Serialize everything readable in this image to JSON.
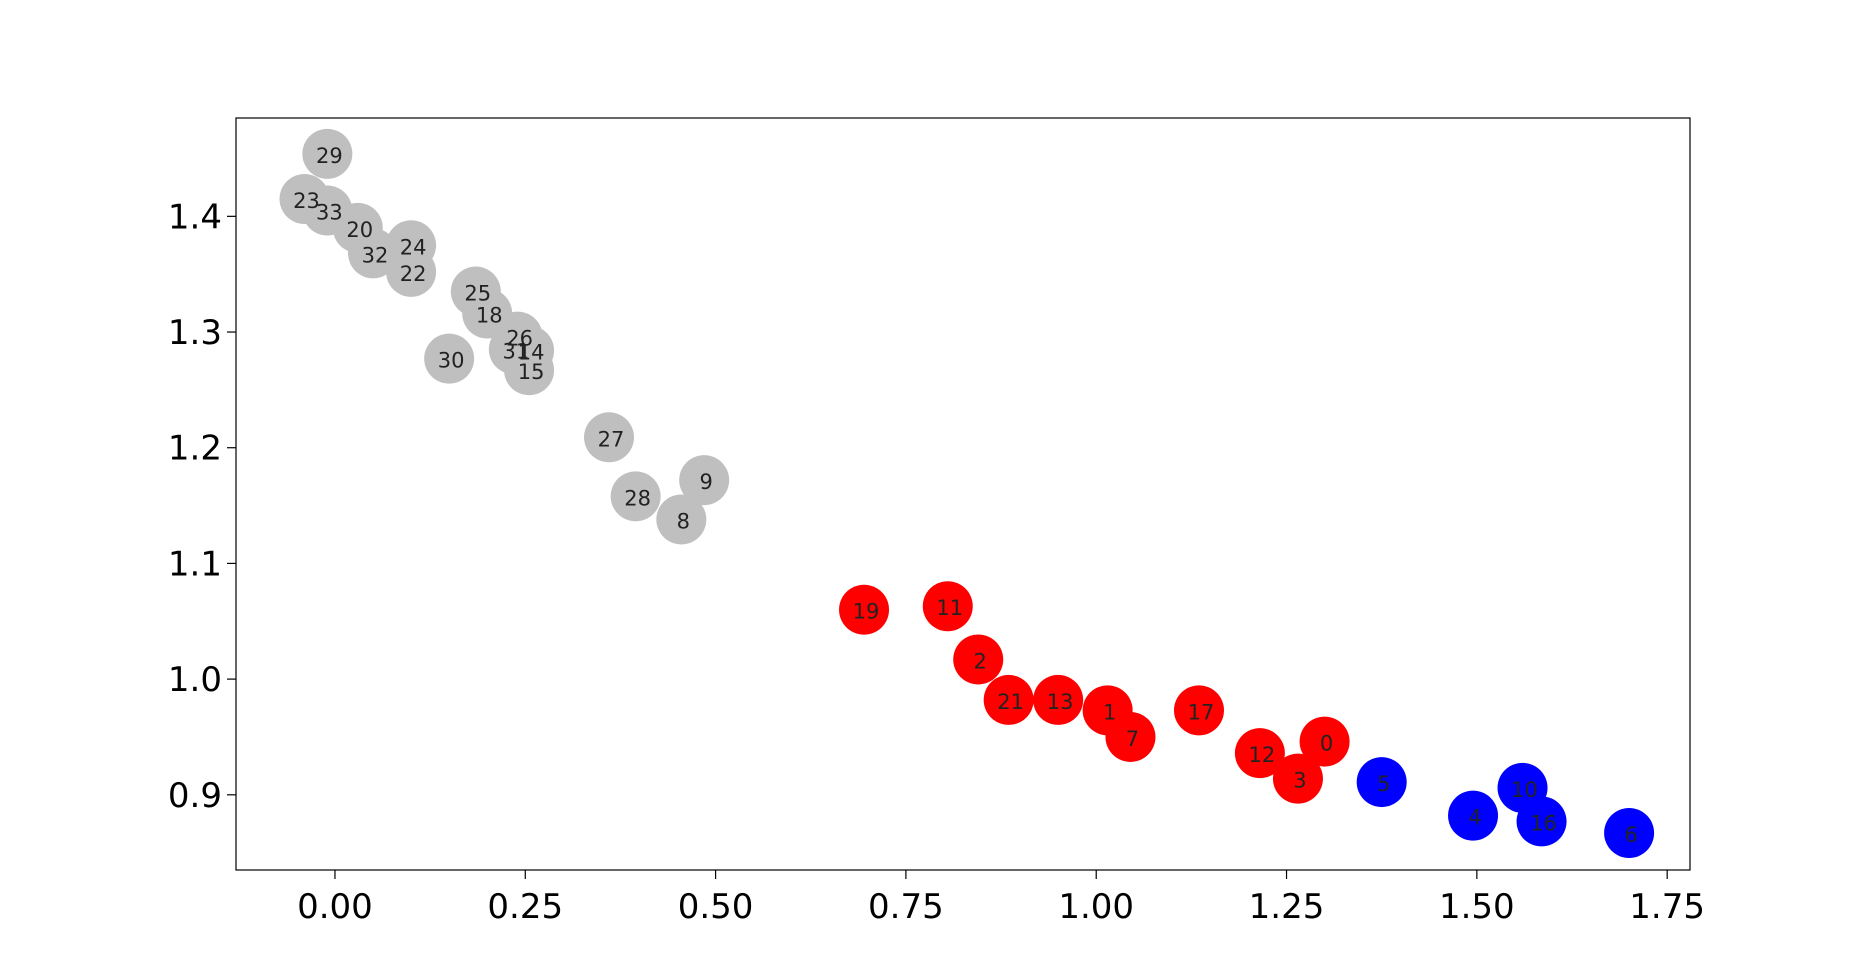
{
  "chart_data": {
    "type": "scatter",
    "title": "",
    "xlabel": "",
    "ylabel": "",
    "xlim": [
      -0.13,
      1.78
    ],
    "ylim": [
      0.835,
      1.485
    ],
    "grid": false,
    "x_ticks": [
      {
        "value": 0.0,
        "label": "0.00"
      },
      {
        "value": 0.25,
        "label": "0.25"
      },
      {
        "value": 0.5,
        "label": "0.50"
      },
      {
        "value": 0.75,
        "label": "0.75"
      },
      {
        "value": 1.0,
        "label": "1.00"
      },
      {
        "value": 1.25,
        "label": "1.25"
      },
      {
        "value": 1.5,
        "label": "1.50"
      },
      {
        "value": 1.75,
        "label": "1.75"
      }
    ],
    "y_ticks": [
      {
        "value": 0.9,
        "label": "0.9"
      },
      {
        "value": 1.0,
        "label": "1.0"
      },
      {
        "value": 1.1,
        "label": "1.1"
      },
      {
        "value": 1.2,
        "label": "1.2"
      },
      {
        "value": 1.3,
        "label": "1.3"
      },
      {
        "value": 1.4,
        "label": "1.4"
      }
    ],
    "groups": [
      {
        "color": "#bfbfbf",
        "points": [
          {
            "label": "29",
            "x": -0.01,
            "y": 1.454
          },
          {
            "label": "23",
            "x": -0.04,
            "y": 1.415
          },
          {
            "label": "33",
            "x": -0.01,
            "y": 1.405
          },
          {
            "label": "20",
            "x": 0.03,
            "y": 1.39
          },
          {
            "label": "32",
            "x": 0.05,
            "y": 1.368
          },
          {
            "label": "24",
            "x": 0.1,
            "y": 1.375
          },
          {
            "label": "22",
            "x": 0.1,
            "y": 1.352
          },
          {
            "label": "25",
            "x": 0.185,
            "y": 1.335
          },
          {
            "label": "18",
            "x": 0.2,
            "y": 1.316
          },
          {
            "label": "26",
            "x": 0.24,
            "y": 1.296
          },
          {
            "label": "31",
            "x": 0.235,
            "y": 1.285
          },
          {
            "label": "14",
            "x": 0.255,
            "y": 1.284
          },
          {
            "label": "15",
            "x": 0.255,
            "y": 1.267
          },
          {
            "label": "30",
            "x": 0.15,
            "y": 1.277
          },
          {
            "label": "27",
            "x": 0.36,
            "y": 1.209
          },
          {
            "label": "9",
            "x": 0.485,
            "y": 1.172
          },
          {
            "label": "28",
            "x": 0.395,
            "y": 1.158
          },
          {
            "label": "8",
            "x": 0.455,
            "y": 1.138
          }
        ]
      },
      {
        "color": "#ff0000",
        "points": [
          {
            "label": "19",
            "x": 0.695,
            "y": 1.06
          },
          {
            "label": "11",
            "x": 0.805,
            "y": 1.063
          },
          {
            "label": "2",
            "x": 0.845,
            "y": 1.017
          },
          {
            "label": "21",
            "x": 0.885,
            "y": 0.982
          },
          {
            "label": "13",
            "x": 0.95,
            "y": 0.982
          },
          {
            "label": "1",
            "x": 1.015,
            "y": 0.973
          },
          {
            "label": "7",
            "x": 1.045,
            "y": 0.95
          },
          {
            "label": "17",
            "x": 1.135,
            "y": 0.973
          },
          {
            "label": "12",
            "x": 1.215,
            "y": 0.936
          },
          {
            "label": "0",
            "x": 1.3,
            "y": 0.946
          },
          {
            "label": "3",
            "x": 1.265,
            "y": 0.914
          }
        ]
      },
      {
        "color": "#0000ff",
        "points": [
          {
            "label": "5",
            "x": 1.375,
            "y": 0.911
          },
          {
            "label": "4",
            "x": 1.495,
            "y": 0.882
          },
          {
            "label": "10",
            "x": 1.56,
            "y": 0.906
          },
          {
            "label": "16",
            "x": 1.585,
            "y": 0.877
          },
          {
            "label": "6",
            "x": 1.7,
            "y": 0.867
          }
        ]
      }
    ]
  }
}
